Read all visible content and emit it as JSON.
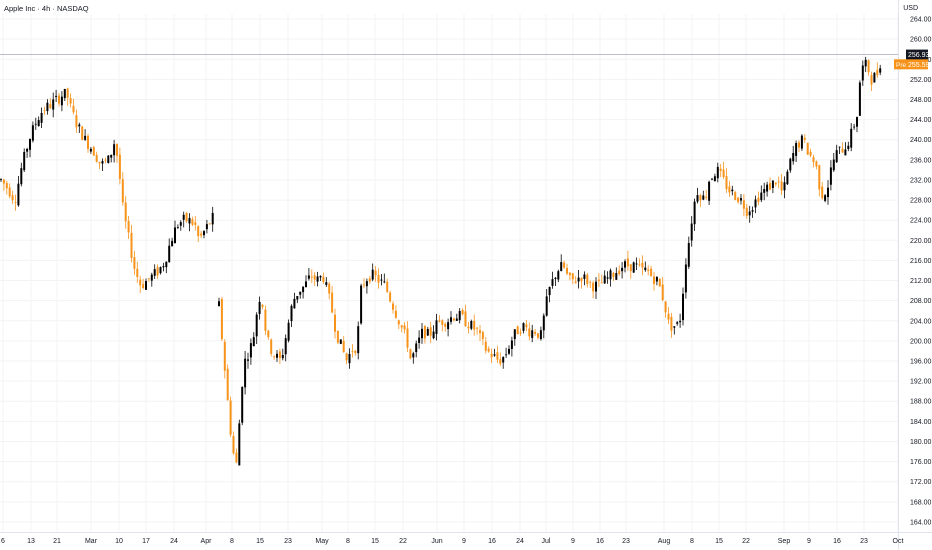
{
  "header": {
    "title": "Apple Inc · 4h · NASDAQ",
    "currency": "USD"
  },
  "price_labels": {
    "last_price": "256.93",
    "pre_tag": "Pre",
    "pre_price": "255.59"
  },
  "colors": {
    "up": "#000000",
    "down": "#f7931a",
    "pre_tag_bg": "#f7931a",
    "last_tag_bg": "#131722",
    "grid": "#f3f3f3",
    "text": "#131722"
  },
  "chart_data": {
    "type": "candlestick",
    "title": "Apple Inc · 4h · NASDAQ",
    "ylabel": "USD",
    "ylim": [
      162,
      265
    ],
    "y_ticks": [
      "164.00",
      "168.00",
      "172.00",
      "176.00",
      "180.00",
      "184.00",
      "188.00",
      "192.00",
      "196.00",
      "200.00",
      "204.00",
      "208.00",
      "212.00",
      "216.00",
      "220.00",
      "224.00",
      "228.00",
      "232.00",
      "236.00",
      "240.00",
      "244.00",
      "248.00",
      "252.00",
      "256.00",
      "260.00",
      "264.00"
    ],
    "x_tick_labels": [
      "6",
      "13",
      "21",
      "Mar",
      "10",
      "17",
      "24",
      "Apr",
      "8",
      "15",
      "23",
      "May",
      "8",
      "15",
      "22",
      "Jun",
      "9",
      "16",
      "24",
      "Jul",
      "9",
      "16",
      "23",
      "Aug",
      "8",
      "15",
      "22",
      "Sep",
      "9",
      "16",
      "23",
      "Oct"
    ],
    "grid": true,
    "last_price": 256.93,
    "pre_market_price": 255.59,
    "series": [
      {
        "trend_points": [
          [
            0,
            232
          ],
          [
            8,
            230
          ],
          [
            14,
            228
          ],
          [
            20,
            234
          ],
          [
            28,
            240
          ],
          [
            36,
            244
          ],
          [
            42,
            246
          ],
          [
            50,
            247
          ],
          [
            56,
            248
          ],
          [
            62,
            249
          ],
          [
            66,
            249
          ],
          [
            70,
            246
          ],
          [
            76,
            243
          ],
          [
            84,
            240
          ],
          [
            92,
            238
          ],
          [
            100,
            235
          ],
          [
            108,
            236
          ],
          [
            114,
            240
          ],
          [
            118,
            234
          ],
          [
            122,
            226
          ],
          [
            128,
            220
          ],
          [
            134,
            214
          ],
          [
            140,
            211
          ],
          [
            146,
            212
          ],
          [
            152,
            213
          ],
          [
            158,
            214
          ],
          [
            164,
            216
          ],
          [
            170,
            220
          ],
          [
            176,
            223
          ],
          [
            182,
            224
          ],
          [
            188,
            224
          ],
          [
            194,
            223
          ],
          [
            198,
            220
          ],
          [
            204,
            222
          ],
          [
            210,
            224
          ],
          [
            214,
            225
          ]
        ]
      },
      {
        "trend_points": [
          [
            218,
            207
          ],
          [
            224,
            194
          ],
          [
            228,
            185
          ],
          [
            232,
            178
          ],
          [
            236,
            175
          ],
          [
            240,
            190
          ],
          [
            244,
            196
          ],
          [
            248,
            198
          ],
          [
            252,
            200
          ],
          [
            256,
            206
          ],
          [
            260,
            210
          ],
          [
            264,
            203
          ],
          [
            268,
            199
          ],
          [
            274,
            197
          ],
          [
            280,
            196
          ],
          [
            286,
            202
          ],
          [
            292,
            208
          ],
          [
            298,
            210
          ],
          [
            304,
            211
          ],
          [
            310,
            213
          ],
          [
            316,
            212
          ],
          [
            322,
            213
          ],
          [
            326,
            210
          ],
          [
            330,
            207
          ],
          [
            334,
            203
          ],
          [
            338,
            200
          ],
          [
            342,
            198
          ],
          [
            346,
            196
          ],
          [
            350,
            198
          ],
          [
            356,
            199
          ],
          [
            360,
            210
          ],
          [
            364,
            212
          ],
          [
            368,
            213
          ],
          [
            372,
            213
          ],
          [
            378,
            212
          ],
          [
            384,
            211
          ],
          [
            390,
            208
          ],
          [
            396,
            205
          ],
          [
            400,
            203
          ],
          [
            406,
            200
          ],
          [
            410,
            196
          ],
          [
            416,
            199
          ],
          [
            422,
            202
          ],
          [
            428,
            201
          ],
          [
            434,
            203
          ],
          [
            440,
            204
          ],
          [
            446,
            204
          ],
          [
            452,
            205
          ],
          [
            458,
            205
          ],
          [
            464,
            204
          ],
          [
            470,
            203
          ],
          [
            476,
            202
          ],
          [
            480,
            200
          ],
          [
            486,
            198
          ],
          [
            492,
            197
          ],
          [
            498,
            196
          ],
          [
            504,
            197
          ],
          [
            510,
            200
          ],
          [
            516,
            202
          ],
          [
            522,
            203
          ],
          [
            528,
            202
          ],
          [
            534,
            202
          ],
          [
            540,
            201
          ],
          [
            544,
            206
          ],
          [
            548,
            210
          ],
          [
            552,
            212
          ],
          [
            556,
            214
          ],
          [
            562,
            215
          ],
          [
            568,
            212
          ],
          [
            574,
            212
          ],
          [
            580,
            213
          ],
          [
            586,
            212
          ],
          [
            592,
            211
          ],
          [
            598,
            211
          ],
          [
            604,
            212
          ],
          [
            610,
            213
          ],
          [
            616,
            214
          ],
          [
            622,
            215
          ],
          [
            628,
            215
          ],
          [
            634,
            215
          ],
          [
            640,
            214
          ],
          [
            646,
            214
          ],
          [
            650,
            213
          ],
          [
            656,
            212
          ],
          [
            660,
            210
          ],
          [
            664,
            207
          ],
          [
            668,
            203
          ],
          [
            672,
            203
          ],
          [
            676,
            203
          ],
          [
            680,
            205
          ],
          [
            684,
            215
          ],
          [
            688,
            220
          ],
          [
            692,
            226
          ],
          [
            696,
            230
          ],
          [
            700,
            229
          ],
          [
            704,
            228
          ],
          [
            708,
            232
          ],
          [
            712,
            233
          ],
          [
            716,
            234
          ],
          [
            722,
            232
          ],
          [
            728,
            230
          ],
          [
            734,
            229
          ],
          [
            740,
            228
          ],
          [
            746,
            226
          ],
          [
            752,
            227
          ],
          [
            758,
            229
          ],
          [
            764,
            230
          ],
          [
            770,
            231
          ],
          [
            776,
            232
          ],
          [
            782,
            229
          ],
          [
            786,
            233
          ],
          [
            790,
            236
          ],
          [
            796,
            239
          ],
          [
            802,
            240
          ],
          [
            806,
            238
          ],
          [
            812,
            236
          ],
          [
            816,
            234
          ],
          [
            820,
            229
          ],
          [
            826,
            230
          ],
          [
            830,
            234
          ],
          [
            834,
            237
          ],
          [
            840,
            238
          ],
          [
            846,
            239
          ],
          [
            850,
            241
          ],
          [
            856,
            245
          ],
          [
            860,
            254
          ],
          [
            866,
            255
          ],
          [
            870,
            252
          ],
          [
            876,
            253
          ],
          [
            880,
            256
          ]
        ]
      }
    ]
  }
}
